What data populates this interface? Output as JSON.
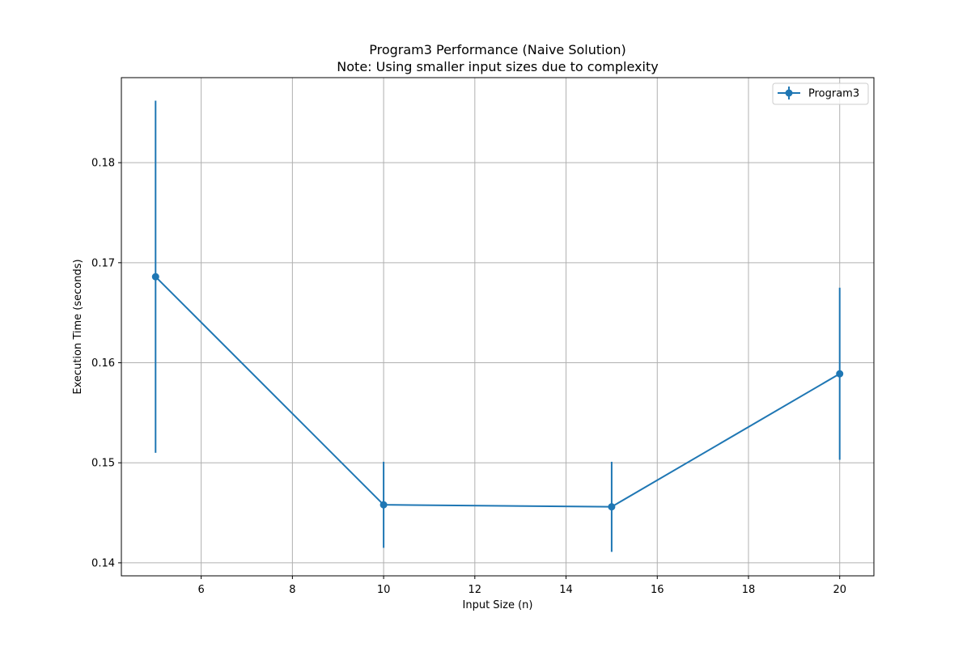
{
  "chart_data": {
    "type": "line",
    "title": "Program3 Performance (Naive Solution)",
    "subtitle": "Note: Using smaller input sizes due to complexity",
    "xlabel": "Input Size (n)",
    "ylabel": "Execution Time (seconds)",
    "xlim": [
      4.25,
      20.75
    ],
    "ylim": [
      0.1387,
      0.1885
    ],
    "xticks": [
      6,
      8,
      10,
      12,
      14,
      16,
      18,
      20
    ],
    "yticks": [
      0.14,
      0.15,
      0.16,
      0.17,
      0.18
    ],
    "xtick_labels": [
      "6",
      "8",
      "10",
      "12",
      "14",
      "16",
      "18",
      "20"
    ],
    "ytick_labels": [
      "0.14",
      "0.15",
      "0.16",
      "0.17",
      "0.18"
    ],
    "grid": true,
    "legend_position": "top-right",
    "series": [
      {
        "name": "Program3",
        "color": "#1f77b4",
        "marker": "circle",
        "x": [
          5,
          10,
          15,
          20
        ],
        "y": [
          0.1686,
          0.1458,
          0.1456,
          0.1589
        ],
        "yerr": [
          0.0176,
          0.0043,
          0.0045,
          0.0086
        ]
      }
    ]
  }
}
